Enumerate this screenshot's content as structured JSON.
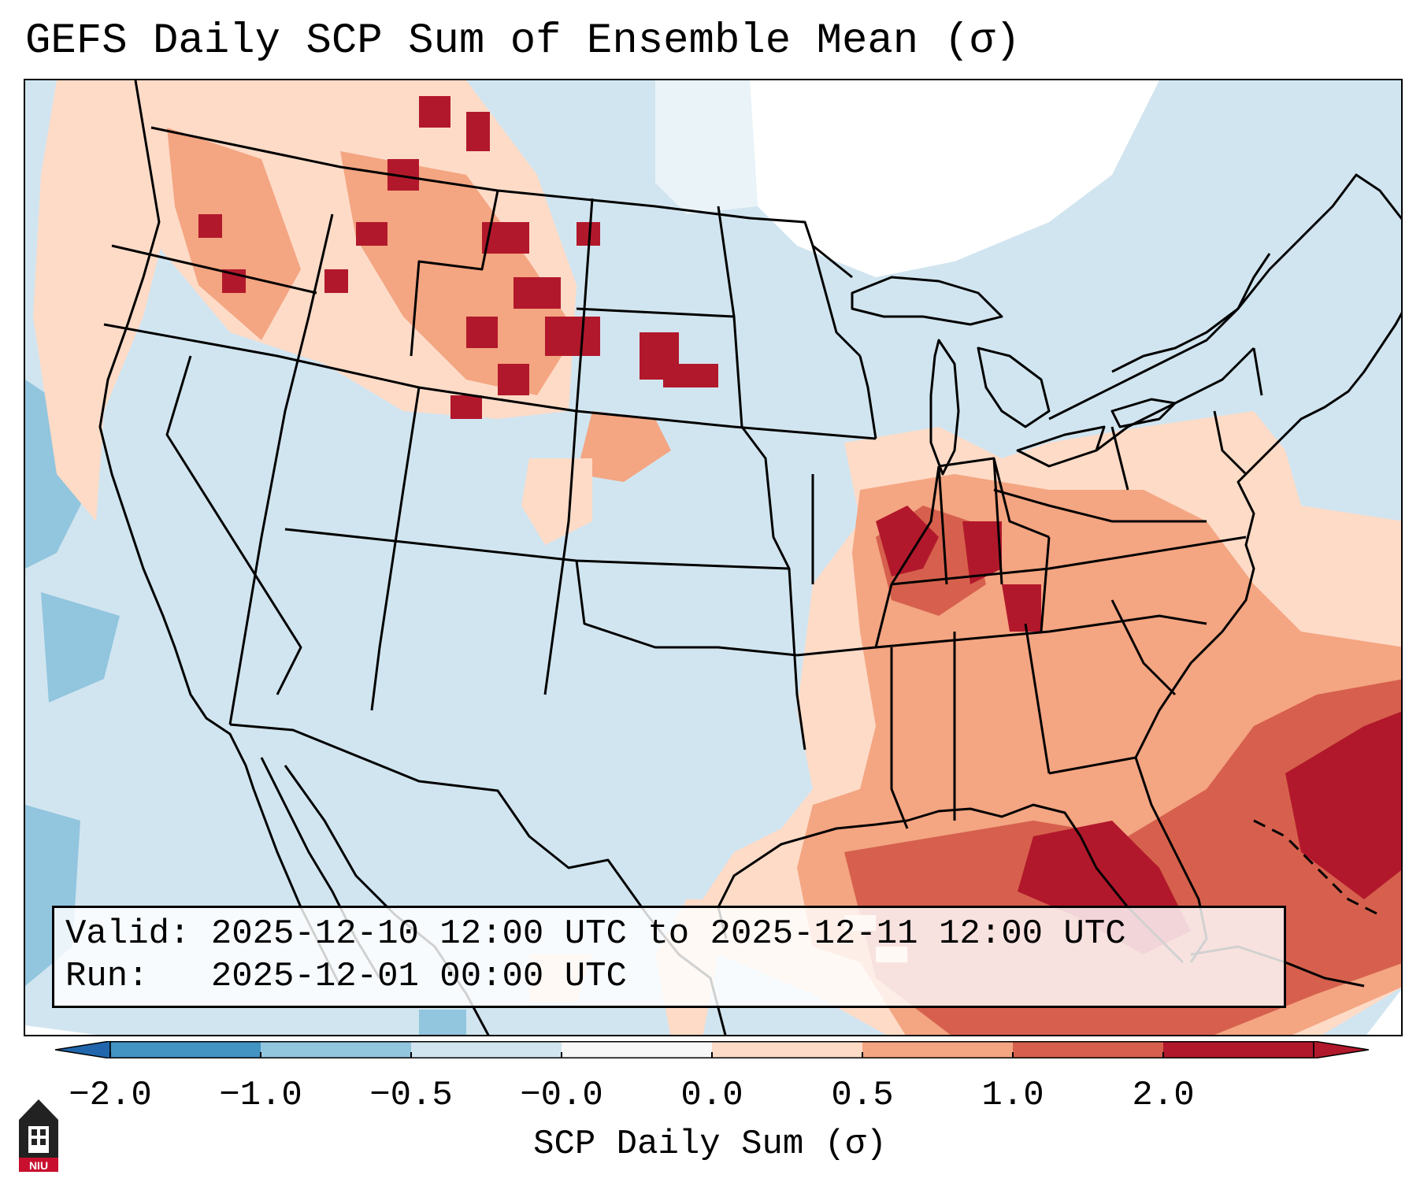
{
  "title": "GEFS Daily SCP Sum of Ensemble Mean (σ)",
  "info": {
    "valid_label": "Valid:",
    "valid_value": "2025-12-10 12:00 UTC to 2025-12-11 12:00 UTC",
    "run_label": "Run:",
    "run_value": "2025-12-01 00:00 UTC"
  },
  "colorbar": {
    "label": "SCP Daily Sum (σ)",
    "ticks": [
      "−2.0",
      "−1.0",
      "−0.5",
      "−0.0",
      "0.0",
      "0.5",
      "1.0",
      "2.0"
    ],
    "bin_colors": [
      "#4393c3",
      "#92c5de",
      "#d1e5f0",
      "#f7f7f7",
      "#fddbc7",
      "#f4a582",
      "#d6604d",
      "#b2182b"
    ],
    "under_color": "#2166ac",
    "over_color": "#b2182b"
  },
  "palette": {
    "land_base": "#d1e5f0",
    "ocean_base": "#d1e5f0",
    "blank": "#ffffff",
    "neg_mid": "#92c5de",
    "pos_light": "#fddbc7",
    "pos_mid": "#f4a582",
    "pos_strong": "#d6604d",
    "pos_max": "#b2182b"
  },
  "logo": {
    "text": "NIU"
  }
}
